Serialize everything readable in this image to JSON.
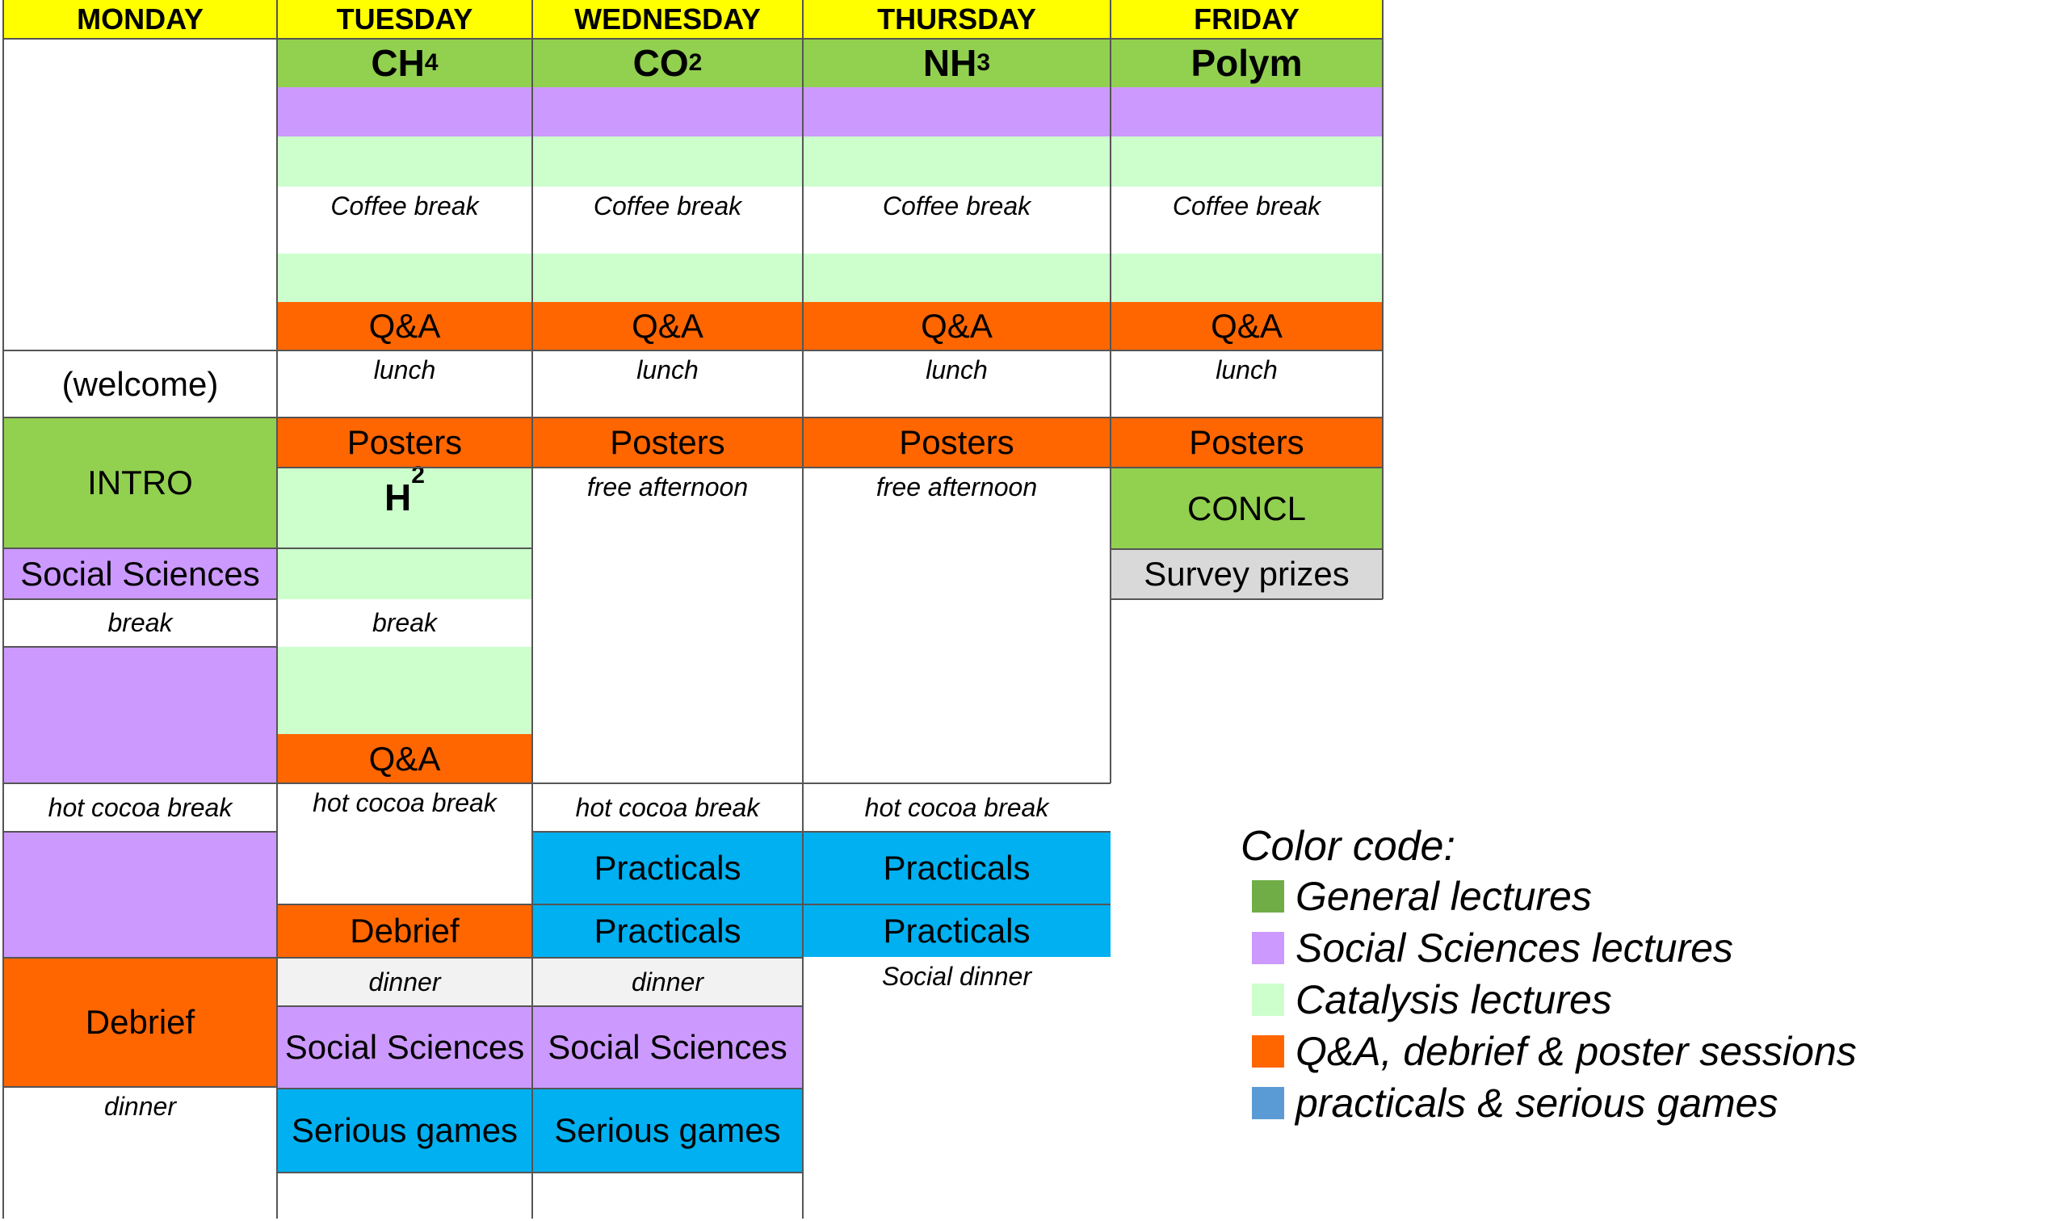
{
  "days": [
    "MONDAY",
    "TUESDAY",
    "WEDNESDAY",
    "THURSDAY",
    "FRIDAY"
  ],
  "colors": {
    "header": "#ffff00",
    "general": "#92d050",
    "social": "#cc99ff",
    "catalysis": "#ccffcc",
    "qa": "#ff6600",
    "practicals": "#00b0f0",
    "dinner_grey": "#f2f2f2",
    "survey_grey": "#d9d9d9",
    "legend_general": "#70ad47",
    "legend_practicals": "#5b9bd5"
  },
  "cells": [
    {
      "label": "",
      "color": "general"
    },
    {
      "label": "",
      "color": "social"
    },
    {
      "label": "",
      "color": "catalysis"
    },
    {
      "label": "Coffee break",
      "color": ""
    },
    {
      "label": "",
      "color": "catalysis"
    },
    {
      "label": "Q&A",
      "color": "qa"
    },
    {
      "label": "lunch",
      "color": ""
    },
    {
      "label": "Posters",
      "color": "qa"
    },
    {
      "label": "free afternoon",
      "color": ""
    },
    {
      "label": "hot cocoa break",
      "color": ""
    },
    {
      "label": "Practicals",
      "color": "practicals"
    },
    {
      "label": "Social dinner",
      "color": ""
    },
    {
      "label": "(welcome)",
      "color": ""
    },
    {
      "label": "INTRO",
      "color": "general"
    },
    {
      "label": "Social Sciences",
      "color": "social"
    },
    {
      "label": "break",
      "color": ""
    },
    {
      "label": "Debrief",
      "color": "qa"
    },
    {
      "label": "dinner",
      "color": ""
    },
    {
      "label": "",
      "color": "catalysis"
    },
    {
      "label": "",
      "color": "social"
    },
    {
      "label": "Serious games",
      "color": "practicals"
    },
    {
      "label": "CONCL",
      "color": "general"
    },
    {
      "label": "Survey prizes",
      "color": "survey_grey"
    }
  ],
  "sessions": {
    "tue": {
      "main": "CH",
      "sub": "4"
    },
    "wed": {
      "main": "CO",
      "sub": "2"
    },
    "thu": {
      "main": "NH",
      "sub": "3"
    },
    "fri": {
      "main": "Polym",
      "sub": ""
    },
    "tue_pm": {
      "main": "H",
      "sub": "2"
    }
  },
  "legend": {
    "title": "Color code:",
    "items": [
      {
        "label": "General lectures",
        "color": "legend_general"
      },
      {
        "label": "Social Sciences lectures",
        "color": "social"
      },
      {
        "label": "Catalysis lectures",
        "color": "catalysis"
      },
      {
        "label": "Q&A, debrief & poster sessions",
        "color": "qa"
      },
      {
        "label": "practicals & serious games",
        "color": "legend_practicals"
      }
    ]
  }
}
